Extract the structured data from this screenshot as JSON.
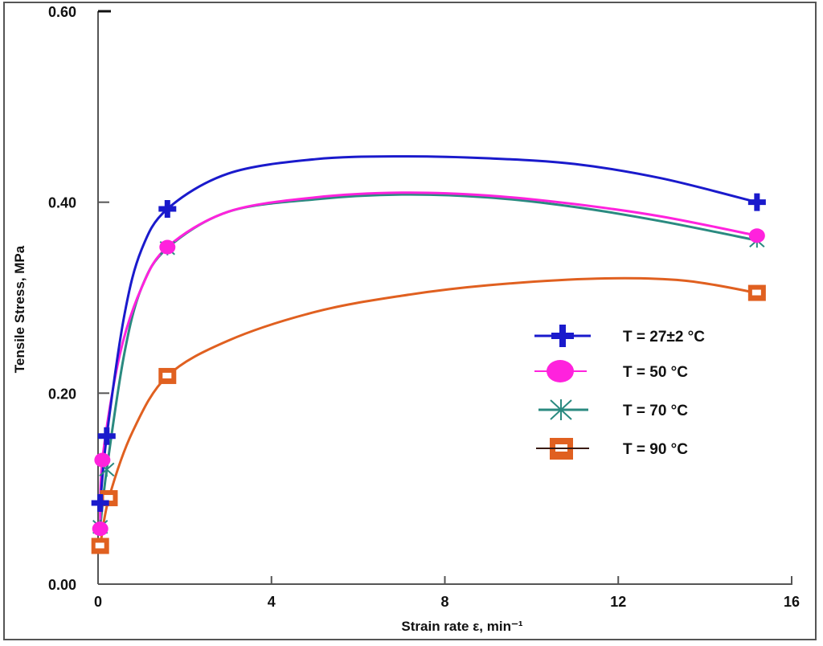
{
  "chart_data": {
    "type": "line",
    "title": "",
    "xlabel": "Strain rate ε, min⁻¹",
    "ylabel": "Tensile Stress, MPa",
    "xlim": [
      0,
      16
    ],
    "ylim": [
      0.0,
      0.6
    ],
    "x_ticks": [
      "0",
      "4",
      "8",
      "12",
      "16"
    ],
    "y_ticks": [
      "0.00",
      "0.20",
      "0.40",
      "0.60"
    ],
    "grid": false,
    "legend_position": "right-center",
    "series": [
      {
        "name": "T = 27±2 °C",
        "color": "#1a1acc",
        "marker": "plus",
        "points": [
          [
            0.05,
            0.085
          ],
          [
            0.2,
            0.155
          ],
          [
            1.6,
            0.393
          ],
          [
            15.2,
            0.4
          ]
        ],
        "curve": [
          [
            0.05,
            0.085
          ],
          [
            0.2,
            0.155
          ],
          [
            0.6,
            0.28
          ],
          [
            1.0,
            0.35
          ],
          [
            1.6,
            0.393
          ],
          [
            3,
            0.43
          ],
          [
            5,
            0.445
          ],
          [
            7,
            0.448
          ],
          [
            9,
            0.446
          ],
          [
            11,
            0.44
          ],
          [
            13,
            0.425
          ],
          [
            15.2,
            0.4
          ]
        ]
      },
      {
        "name": "T = 50 °C",
        "color": "#ff22dd",
        "marker": "circle",
        "points": [
          [
            0.05,
            0.058
          ],
          [
            0.1,
            0.13
          ],
          [
            1.6,
            0.353
          ],
          [
            15.2,
            0.365
          ]
        ],
        "curve": [
          [
            0.05,
            0.058
          ],
          [
            0.1,
            0.13
          ],
          [
            0.5,
            0.24
          ],
          [
            1.0,
            0.31
          ],
          [
            1.6,
            0.353
          ],
          [
            3,
            0.39
          ],
          [
            5,
            0.405
          ],
          [
            7,
            0.41
          ],
          [
            9,
            0.407
          ],
          [
            11,
            0.398
          ],
          [
            13,
            0.385
          ],
          [
            15.2,
            0.365
          ]
        ]
      },
      {
        "name": "T = 70 °C",
        "color": "#2a8a80",
        "marker": "asterisk",
        "points": [
          [
            0.05,
            0.06
          ],
          [
            0.2,
            0.12
          ],
          [
            1.6,
            0.352
          ],
          [
            15.2,
            0.36
          ]
        ],
        "curve": [
          [
            0.05,
            0.06
          ],
          [
            0.2,
            0.12
          ],
          [
            0.6,
            0.24
          ],
          [
            1.0,
            0.31
          ],
          [
            1.6,
            0.352
          ],
          [
            3,
            0.39
          ],
          [
            5,
            0.403
          ],
          [
            7,
            0.408
          ],
          [
            9,
            0.405
          ],
          [
            11,
            0.395
          ],
          [
            13,
            0.38
          ],
          [
            15.2,
            0.36
          ]
        ]
      },
      {
        "name": "T = 90 °C",
        "color": "#e06020",
        "marker": "square",
        "points": [
          [
            0.05,
            0.04
          ],
          [
            0.25,
            0.09
          ],
          [
            1.6,
            0.218
          ],
          [
            15.2,
            0.305
          ]
        ],
        "curve": [
          [
            0.05,
            0.04
          ],
          [
            0.25,
            0.09
          ],
          [
            0.8,
            0.16
          ],
          [
            1.6,
            0.218
          ],
          [
            3,
            0.255
          ],
          [
            5,
            0.285
          ],
          [
            7,
            0.302
          ],
          [
            9,
            0.313
          ],
          [
            11.5,
            0.32
          ],
          [
            13.5,
            0.318
          ],
          [
            15.2,
            0.305
          ]
        ]
      }
    ]
  },
  "legend": {
    "items": [
      {
        "label": "T = 27±2 °C"
      },
      {
        "label": "T = 50 °C"
      },
      {
        "label": "T = 70 °C"
      },
      {
        "label": "T = 90 °C"
      }
    ]
  }
}
